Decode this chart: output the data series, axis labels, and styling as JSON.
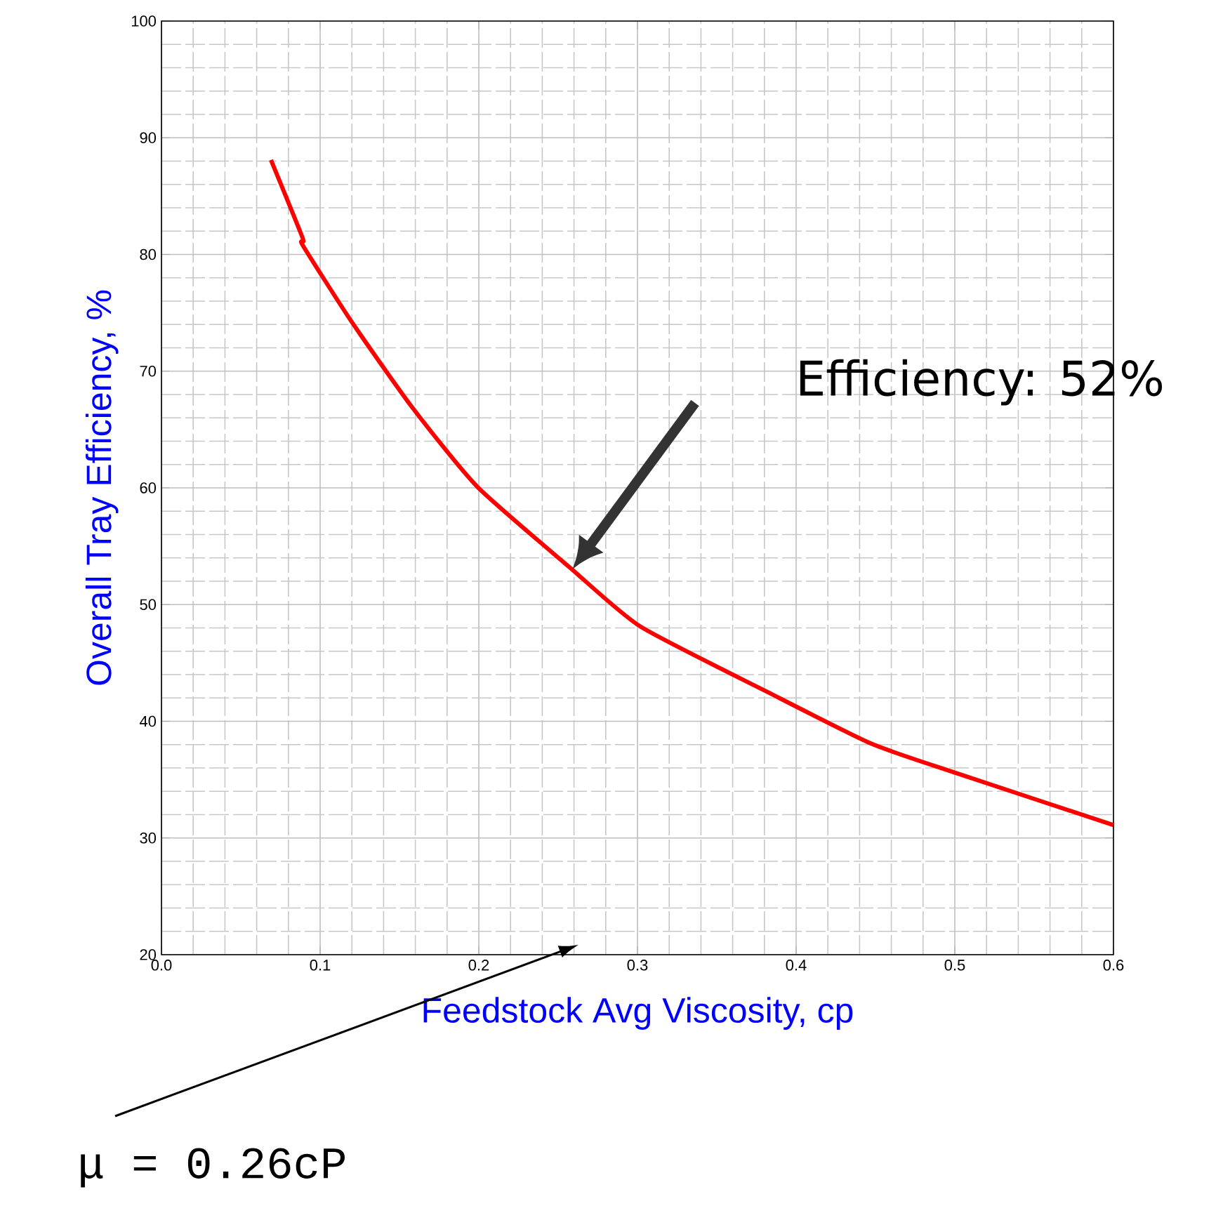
{
  "chart_data": {
    "type": "line",
    "xlabel": "Feedstock Avg Viscosity, cp",
    "ylabel": "Overall Tray Efficiency, %",
    "x": [
      0.069,
      0.089,
      0.089,
      0.12,
      0.158,
      0.199,
      0.258,
      0.302,
      0.382,
      0.447,
      0.5,
      0.6
    ],
    "values": [
      88.1,
      81.4,
      80.8,
      74.2,
      66.9,
      60.1,
      53.1,
      48.1,
      42.5,
      38.1,
      35.6,
      31.1
    ],
    "color": "#ff0000",
    "xlim": [
      0,
      0.6
    ],
    "ylim": [
      20,
      100
    ],
    "xticks": [
      {
        "value": 0,
        "label": "0.0"
      },
      0.1,
      0.2,
      0.3,
      0.4,
      0.5,
      0.6
    ],
    "yticks": [
      20,
      30,
      40,
      50,
      60,
      70,
      80,
      90,
      100
    ],
    "grid": true,
    "annotations": [
      "Efficiency: 52%",
      "μ = 0.26cP"
    ]
  }
}
